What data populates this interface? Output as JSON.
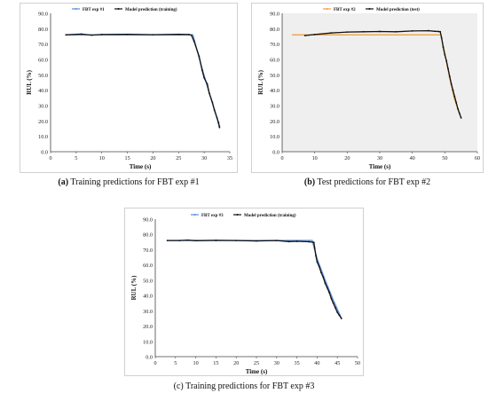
{
  "panels": [
    {
      "caption_tag": "(a)",
      "caption_text": "Training predictions for FBT exp #1"
    },
    {
      "caption_tag": "(b)",
      "caption_text": "Test predictions for FBT exp #2"
    },
    {
      "caption_tag": "(c)",
      "caption_text": "Training predictions for FBT exp #3"
    }
  ],
  "chart_data": [
    {
      "type": "line",
      "xlabel": "Time (s)",
      "ylabel": "RUL (%)",
      "xlim": [
        0,
        35
      ],
      "ylim": [
        0,
        90
      ],
      "xticks": [
        "0",
        "5",
        "10",
        "15",
        "20",
        "25",
        "30",
        "35"
      ],
      "yticks": [
        "0.0",
        "10.0",
        "20.0",
        "30.0",
        "40.0",
        "50.0",
        "60.0",
        "70.0",
        "80.0",
        "90.0"
      ],
      "grid": false,
      "plot_background": "#ffffff",
      "legend_position": "top-center",
      "series": [
        {
          "name": "FBT exp #1",
          "color": "#5b8ed6",
          "x": [
            3,
            27.5,
            27.8,
            29.5,
            31,
            32.5,
            33
          ],
          "y": [
            76,
            76,
            76,
            55,
            38,
            22,
            15
          ]
        },
        {
          "name": "Model prediction (training)",
          "color": "#111111",
          "x": [
            3,
            6,
            8,
            10,
            15,
            20,
            25,
            27,
            27.5,
            28,
            29,
            29.6,
            30,
            30.6,
            31,
            31.6,
            32,
            32.5,
            32.8,
            33
          ],
          "y": [
            76,
            76.5,
            75.8,
            76.2,
            76.3,
            76.1,
            76.3,
            76.2,
            75.8,
            72,
            62,
            53,
            48,
            44,
            38,
            32,
            27,
            22,
            19,
            16
          ]
        }
      ]
    },
    {
      "type": "line",
      "xlabel": "Time (s)",
      "ylabel": "RUL (%)",
      "xlim": [
        0,
        60
      ],
      "ylim": [
        0,
        90
      ],
      "xticks": [
        "0",
        "10",
        "20",
        "30",
        "40",
        "50",
        "60"
      ],
      "yticks": [
        "0.0",
        "10.0",
        "20.0",
        "30.0",
        "40.0",
        "50.0",
        "60.0",
        "70.0",
        "80.0",
        "90.0"
      ],
      "grid": false,
      "plot_background": "#efefef",
      "legend_position": "top-center",
      "series": [
        {
          "name": "FBT exp #2",
          "color": "#f0a040",
          "x": [
            3,
            48.5,
            48.8,
            50,
            51.5,
            53,
            55
          ],
          "y": [
            76,
            76,
            76,
            64,
            48,
            34,
            22
          ]
        },
        {
          "name": "Model prediction (test)",
          "color": "#111111",
          "x": [
            7,
            10,
            15,
            20,
            25,
            30,
            35,
            40,
            45,
            47,
            48,
            48.6,
            49,
            49.5,
            50,
            50.5,
            51,
            51.5,
            52,
            52.5,
            53,
            53.5,
            54,
            54.5,
            55
          ],
          "y": [
            75.5,
            76.2,
            77.2,
            77.8,
            78,
            78.2,
            78,
            78.5,
            78.7,
            78.3,
            78.2,
            78,
            74,
            68,
            63,
            59,
            54,
            49,
            44,
            40,
            36,
            32,
            28,
            25,
            22
          ]
        }
      ]
    },
    {
      "type": "line",
      "xlabel": "Time (s)",
      "ylabel": "RUL (%)",
      "xlim": [
        0,
        50
      ],
      "ylim": [
        0,
        90
      ],
      "xticks": [
        "0",
        "5",
        "10",
        "15",
        "20",
        "25",
        "30",
        "35",
        "40",
        "45",
        "50"
      ],
      "yticks": [
        "0.0",
        "10.0",
        "20.0",
        "30.0",
        "40.0",
        "50.0",
        "60.0",
        "70.0",
        "80.0",
        "90.0"
      ],
      "grid": false,
      "plot_background": "#ffffff",
      "legend_position": "top-center",
      "series": [
        {
          "name": "FBT exp #3",
          "color": "#5b8ed6",
          "x": [
            3,
            38.5,
            38.8,
            40,
            42,
            44,
            46
          ],
          "y": [
            76,
            76,
            76,
            64,
            50,
            37,
            25
          ]
        },
        {
          "name": "Model prediction (training)",
          "color": "#111111",
          "x": [
            3,
            6,
            8,
            10,
            15,
            20,
            25,
            30,
            33,
            35,
            38,
            39.2,
            39.4,
            39.7,
            40,
            40.5,
            41,
            41.5,
            42,
            42.5,
            43,
            43.5,
            44,
            44.5,
            45,
            45.5,
            46
          ],
          "y": [
            76,
            76,
            76.3,
            75.9,
            76.1,
            76,
            75.7,
            76,
            75.3,
            75.5,
            75.2,
            74.8,
            71,
            66,
            62,
            59,
            55,
            52,
            48,
            45,
            42,
            38,
            35,
            32,
            29,
            27,
            25
          ]
        }
      ]
    }
  ]
}
